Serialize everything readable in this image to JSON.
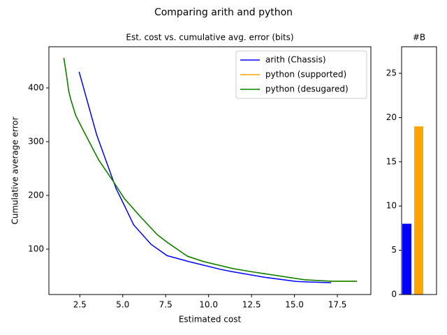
{
  "title": "Comparing arith and python",
  "chart_data": [
    {
      "type": "line",
      "title": "Est. cost vs. cumulative avg. error (bits)",
      "xlabel": "Estimated cost",
      "ylabel": "Cumulative average error",
      "xlim": [
        0.7,
        19.45
      ],
      "ylim": [
        15.6,
        476.6
      ],
      "xticks": [
        2.5,
        {
          "value": 5,
          "label": "5.0"
        },
        7.5,
        {
          "value": 10,
          "label": "10.0"
        },
        12.5,
        {
          "value": 15,
          "label": "15.0"
        },
        17.5
      ],
      "yticks": [
        100,
        200,
        300,
        400
      ],
      "legend": "upper-right",
      "series": [
        {
          "name": "arith (Chassis)",
          "color": "#0000ff",
          "x": [
            2.46,
            3.48,
            4.61,
            5.1,
            5.63,
            6.65,
            7.58,
            8.84,
            10.67,
            11.32,
            13.19,
            15.1,
            15.75,
            17.13
          ],
          "values": [
            430,
            313,
            213,
            181,
            145.5,
            109,
            88,
            77,
            62.6,
            58.4,
            48,
            40,
            39,
            37.7
          ]
        },
        {
          "name": "python (supported)",
          "color": "#ffa500",
          "x": [
            1.57,
            1.73,
            1.85,
            1.97,
            2.26,
            2.62,
            3.6,
            4.45,
            5.1,
            6.04,
            7.01,
            7.58,
            8.76,
            9.7,
            11.4,
            12.62,
            15.59,
            17.2,
            18.64
          ],
          "values": [
            455.8,
            423,
            395,
            379,
            349,
            326,
            266,
            226,
            194,
            160,
            127,
            113,
            87,
            77,
            64,
            57.4,
            43,
            40.3,
            40.3
          ]
        },
        {
          "name": "python (desugared)",
          "color": "#008000",
          "x": [
            1.57,
            1.73,
            1.85,
            1.97,
            2.26,
            2.62,
            3.6,
            4.45,
            5.1,
            6.04,
            7.01,
            7.58,
            8.76,
            9.7,
            11.4,
            12.62,
            15.59,
            17.2,
            18.64
          ],
          "values": [
            455.8,
            423,
            395,
            379,
            349,
            326,
            266,
            226,
            194,
            160,
            127,
            113,
            87,
            77,
            64,
            57.4,
            43,
            40.3,
            40.3
          ]
        }
      ]
    },
    {
      "type": "bar",
      "title": "#B",
      "categories": [
        null,
        null
      ],
      "values": [
        8,
        19
      ],
      "colors": [
        "#0000ff",
        "#ffa500"
      ],
      "ylim": [
        0,
        28
      ],
      "yticks": [
        0,
        5,
        10,
        15,
        20,
        25
      ]
    }
  ]
}
